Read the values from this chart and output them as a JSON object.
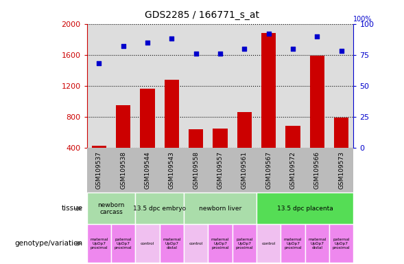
{
  "title": "GDS2285 / 166771_s_at",
  "samples": [
    "GSM109537",
    "GSM109538",
    "GSM109544",
    "GSM109543",
    "GSM109558",
    "GSM109557",
    "GSM109561",
    "GSM109567",
    "GSM109572",
    "GSM109566",
    "GSM109573"
  ],
  "counts": [
    430,
    950,
    1160,
    1280,
    640,
    650,
    860,
    1880,
    680,
    1590,
    790
  ],
  "percentiles": [
    68,
    82,
    85,
    88,
    76,
    76,
    80,
    92,
    80,
    90,
    78
  ],
  "ylim_left": [
    400,
    2000
  ],
  "ylim_right": [
    0,
    100
  ],
  "yticks_left": [
    400,
    800,
    1200,
    1600,
    2000
  ],
  "yticks_right": [
    0,
    25,
    50,
    75,
    100
  ],
  "tissue_data": [
    {
      "label": "newborn\ncarcass",
      "cols": [
        0,
        1
      ],
      "color": "#aaddaa"
    },
    {
      "label": "13.5 dpc embryo",
      "cols": [
        2,
        3
      ],
      "color": "#aaddaa"
    },
    {
      "label": "newborn liver",
      "cols": [
        4,
        5,
        6
      ],
      "color": "#aaddaa"
    },
    {
      "label": "13.5 dpc placenta",
      "cols": [
        7,
        8,
        9,
        10
      ],
      "color": "#55dd55"
    }
  ],
  "geno_data": [
    {
      "label": "maternal\nUpDp7\nproximal",
      "col": 0,
      "color": "#ee88ee"
    },
    {
      "label": "paternal\nUpDp7\nproximal",
      "col": 1,
      "color": "#ee88ee"
    },
    {
      "label": "control",
      "col": 2,
      "color": "#f0c0f0"
    },
    {
      "label": "maternal\nUpDp7\ndistal",
      "col": 3,
      "color": "#ee88ee"
    },
    {
      "label": "control",
      "col": 4,
      "color": "#f0c0f0"
    },
    {
      "label": "maternal\nUpDp7\nproximal",
      "col": 5,
      "color": "#ee88ee"
    },
    {
      "label": "paternal\nUpDp7\nproximal",
      "col": 6,
      "color": "#ee88ee"
    },
    {
      "label": "control",
      "col": 7,
      "color": "#f0c0f0"
    },
    {
      "label": "maternal\nUpDp7\nproximal",
      "col": 8,
      "color": "#ee88ee"
    },
    {
      "label": "maternal\nUpDp7\ndistal",
      "col": 9,
      "color": "#ee88ee"
    },
    {
      "label": "paternal\nUpDp7\nproximal",
      "col": 10,
      "color": "#ee88ee"
    }
  ],
  "bar_color": "#cc0000",
  "dot_color": "#0000cc",
  "dot_size": 25,
  "grid_color": "#888888",
  "left_axis_color": "#cc0000",
  "right_axis_color": "#0000cc",
  "background_plot": "#dddddd",
  "background_xtick": "#bbbbbb",
  "tissue_green_light": "#aaddaa",
  "tissue_green_dark": "#55dd55"
}
